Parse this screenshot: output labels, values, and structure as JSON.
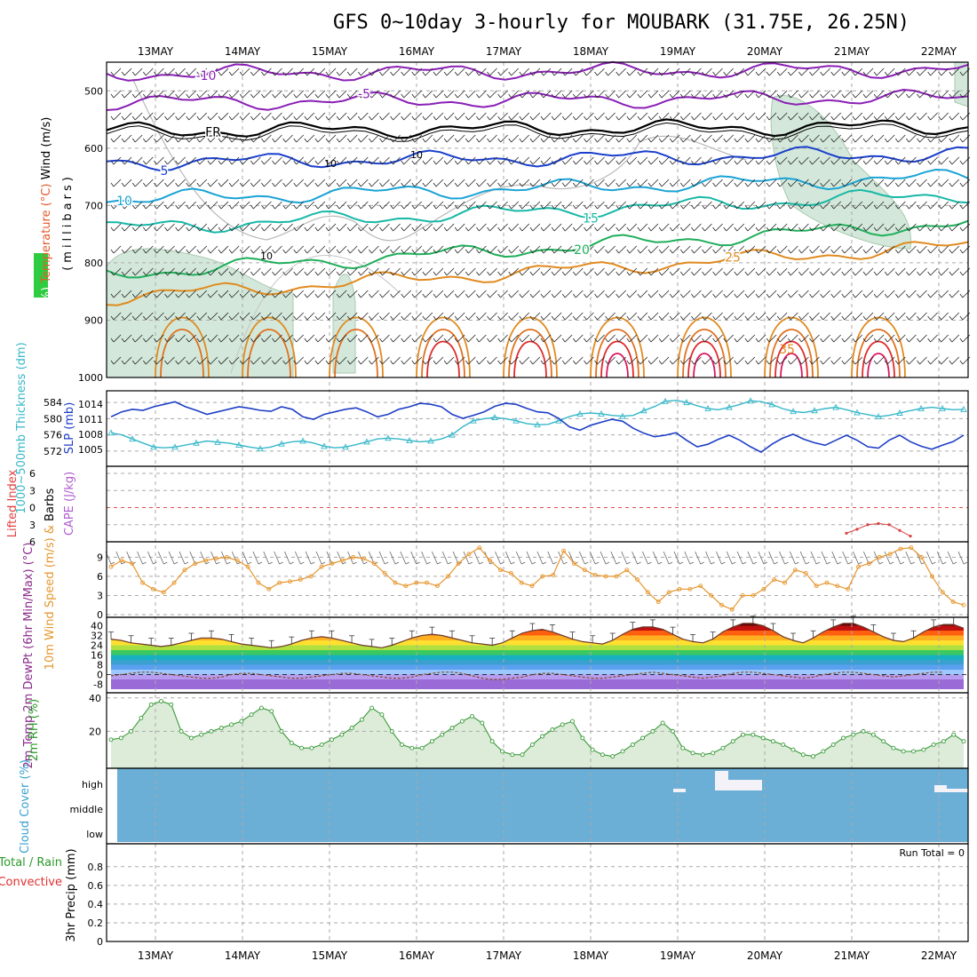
{
  "title": "GFS 0~10day 3-hourly for MOUBARK (31.75E, 26.25N)",
  "dates": [
    "13MAY",
    "14MAY",
    "15MAY",
    "16MAY",
    "17MAY",
    "18MAY",
    "19MAY",
    "20MAY",
    "21MAY",
    "22MAY"
  ],
  "colors": {
    "purple": "#8a1fb5",
    "blue": "#1a3fcc",
    "cyan": "#1aa3d6",
    "teal": "#17b8a6",
    "green": "#1fae5a",
    "orange": "#e08a1f",
    "red": "#e02a2a",
    "magenta": "#d81b60",
    "rh_fill": "#cfe6d6",
    "rh_line": "#3a9a3a",
    "cloud": "#6baed6",
    "thickness": "#36b7c9",
    "slp": "#1f3fc6",
    "wind_speed": "#e6962e"
  },
  "chart_data": [
    {
      "type": "line",
      "panel": "upper-air",
      "ylabel_parts": [
        "RH (%)",
        "Temperature (°C)",
        "Wind (m/s)"
      ],
      "yaxis_label": "(millibars)",
      "y_ticks": [
        500,
        600,
        700,
        800,
        900,
        1000
      ],
      "ylim": [
        450,
        1000
      ],
      "isotherms": [
        {
          "label": "-10",
          "level": 470,
          "color": "purple"
        },
        {
          "label": "-5",
          "level": 520,
          "color": "purple"
        },
        {
          "label": "FR",
          "level": 570,
          "color": "black"
        },
        {
          "label": "5",
          "level": 625,
          "color": "blue"
        },
        {
          "label": "10",
          "level": 690,
          "color": "cyan"
        },
        {
          "label": "15",
          "level": 740,
          "color": "teal"
        },
        {
          "label": "20",
          "level": 820,
          "color": "green"
        },
        {
          "label": "25",
          "level": 860,
          "color": "orange"
        },
        {
          "label": "35",
          "level": 945,
          "color": "orange"
        }
      ],
      "rh_label": "10"
    },
    {
      "type": "line",
      "panel": "thickness-slp",
      "left_label": "1000~500mb Thickness (dm)",
      "right_label": "SLP (mb)",
      "thickness_ticks": [
        572,
        576,
        580,
        584
      ],
      "slp_ticks": [
        1005,
        1008,
        1011,
        1014
      ],
      "thickness": [
        576.5,
        576,
        575,
        574,
        573,
        572.8,
        573,
        573.5,
        574,
        574.5,
        574.2,
        574,
        573.5,
        573,
        572.6,
        573,
        573.8,
        574.3,
        574.5,
        574,
        573.2,
        572.8,
        573,
        573.6,
        574.3,
        575,
        575.2,
        575,
        574.6,
        574.3,
        574.5,
        575,
        576,
        578,
        579.5,
        580,
        580.3,
        580,
        579.5,
        578.8,
        578.5,
        578.6,
        579.5,
        580.5,
        581.2,
        581.4,
        581.2,
        580.8,
        580.6,
        580.8,
        582,
        583,
        584.3,
        584.5,
        584,
        583.2,
        582.5,
        582.2,
        582.8,
        583.5,
        584.4,
        584.2,
        583.5,
        582.5,
        581.8,
        581.5,
        582,
        582.5,
        582.8,
        582.2,
        581.5,
        581,
        580.5,
        580.8,
        581.4,
        582,
        582.5,
        582.8,
        582.5,
        582.2,
        582.3
      ],
      "slp": [
        1011.5,
        1012.5,
        1013,
        1012.8,
        1013.5,
        1014,
        1014.5,
        1013.5,
        1012.8,
        1012,
        1012.5,
        1013,
        1013.5,
        1013.2,
        1012.8,
        1012.6,
        1013.5,
        1013,
        1011.5,
        1011,
        1012,
        1012.5,
        1013,
        1013.3,
        1012.5,
        1011.5,
        1012,
        1013,
        1013.5,
        1014.2,
        1014,
        1013.5,
        1012,
        1011.2,
        1011.8,
        1012.5,
        1013.6,
        1014.2,
        1014,
        1013.2,
        1012.5,
        1012.3,
        1011.2,
        1009.5,
        1008.8,
        1009.8,
        1010.4,
        1011,
        1010.6,
        1009.2,
        1008.2,
        1007.5,
        1007.8,
        1008.3,
        1006.8,
        1005.5,
        1006,
        1007,
        1007.8,
        1006.8,
        1005.5,
        1004.4,
        1006,
        1007.2,
        1008,
        1007,
        1006.3,
        1005.8,
        1006.8,
        1007.8,
        1006.8,
        1005.5,
        1005.2,
        1006.8,
        1007.8,
        1006.5,
        1005.6,
        1005,
        1005.8,
        1006.5,
        1007.8
      ]
    },
    {
      "type": "line",
      "panel": "stability",
      "left_label": "Lifted Index",
      "right_label": "CAPE (J/kg)",
      "li_ticks": [
        -6,
        -3,
        0,
        3,
        6
      ],
      "li_values": [
        [
          69,
          4.5
        ],
        [
          70,
          3.8
        ],
        [
          71,
          3.0
        ],
        [
          72,
          2.8
        ],
        [
          73,
          3.0
        ],
        [
          74,
          4.0
        ],
        [
          75,
          5.0
        ]
      ]
    },
    {
      "type": "line",
      "panel": "10m-wind",
      "ylabel": "10m Wind Speed (m/s) & Barbs",
      "y_ticks": [
        0,
        3,
        6,
        9
      ],
      "values": [
        7.5,
        8.5,
        8,
        5,
        4,
        3.5,
        5,
        7,
        8,
        8.5,
        8.8,
        9,
        8.5,
        7.5,
        5,
        4,
        5,
        5.2,
        5.5,
        6,
        7.5,
        8,
        8.5,
        9,
        8.8,
        8,
        6.5,
        5,
        4.5,
        5,
        5,
        4.5,
        6,
        8,
        9.5,
        10.5,
        8.5,
        7,
        6.5,
        5,
        4.5,
        6,
        6.2,
        10,
        8,
        7,
        6.2,
        6,
        6,
        7,
        5.5,
        3.5,
        2,
        3.5,
        4,
        4,
        4.5,
        3,
        1.5,
        0.8,
        3,
        3,
        4,
        5.5,
        5,
        7,
        6.5,
        4.5,
        5,
        4.5,
        4,
        7.5,
        8,
        9,
        9.5,
        10.3,
        10.5,
        9,
        6,
        3.5,
        2,
        1.5
      ]
    },
    {
      "type": "area",
      "panel": "2m-temp",
      "ylabel": "2m Temp 2m DewPt (6hr Min/Max) (°C)",
      "y_ticks": [
        -8,
        0,
        8,
        16,
        24,
        32,
        40
      ],
      "temp": [
        29,
        28,
        26,
        25,
        24,
        23,
        24,
        26,
        28,
        30,
        30,
        29,
        27,
        25,
        24,
        23,
        22,
        23,
        25,
        28,
        30,
        31,
        30,
        28,
        26,
        24,
        23,
        22,
        24,
        27,
        30,
        32,
        33,
        32,
        30,
        28,
        26,
        25,
        24,
        26,
        30,
        34,
        36,
        37,
        35,
        32,
        29,
        27,
        26,
        25,
        28,
        33,
        37,
        39,
        39,
        37,
        33,
        29,
        27,
        26,
        29,
        35,
        39,
        42,
        42,
        40,
        36,
        31,
        28,
        26,
        30,
        35,
        39,
        42,
        42,
        39,
        35,
        31,
        28,
        27,
        30,
        35,
        39,
        41,
        41,
        38
      ],
      "dewpoint": [
        -1,
        0,
        1,
        2,
        2,
        1,
        0,
        -1,
        -2,
        -3,
        -3,
        -2,
        0,
        1,
        1,
        0,
        -1,
        -2,
        -3,
        -3,
        -2,
        -1,
        0,
        1,
        1,
        0,
        -1,
        -2,
        -3,
        -3,
        -2,
        0,
        1,
        2,
        2,
        1,
        -1,
        -3,
        -4,
        -4,
        -3,
        -2,
        0,
        1,
        1,
        0,
        -1,
        -2,
        -3,
        -3,
        -2,
        -1,
        0,
        1,
        2,
        1,
        0,
        -1,
        -2,
        -3,
        -2,
        -1,
        1,
        2,
        2,
        1,
        0,
        -1,
        -2,
        -3,
        -2,
        0,
        1,
        2,
        2,
        1,
        0,
        -1,
        -2,
        -1,
        0,
        1,
        2,
        2
      ]
    },
    {
      "type": "area",
      "panel": "2m-rh",
      "ylabel": "2m RH (%)",
      "y_ticks": [
        20,
        40
      ],
      "values": [
        15,
        16,
        20,
        28,
        36,
        38,
        36,
        20,
        16,
        18,
        20,
        22,
        24,
        26,
        30,
        34,
        32,
        20,
        13,
        10,
        10,
        12,
        15,
        18,
        22,
        27,
        34,
        30,
        20,
        12,
        10,
        10,
        14,
        18,
        22,
        26,
        29,
        25,
        14,
        8,
        6,
        6,
        12,
        17,
        21,
        24,
        26,
        16,
        9,
        6,
        5,
        8,
        12,
        16,
        20,
        25,
        20,
        10,
        7,
        6,
        7,
        10,
        14,
        18,
        18,
        16,
        14,
        12,
        9,
        6,
        5,
        8,
        12,
        16,
        18,
        20,
        18,
        14,
        10,
        8,
        8,
        9,
        12,
        14,
        18,
        14
      ]
    },
    {
      "type": "bar",
      "panel": "cloud-cover",
      "ylabel": "Cloud Cover (%)",
      "categories": [
        "high",
        "middle",
        "low"
      ]
    },
    {
      "type": "line",
      "panel": "precip",
      "left_labels": [
        "Total / Rain",
        "Convective"
      ],
      "ylabel": "3hr Precip (mm)",
      "y_ticks": [
        0,
        0.2,
        0.4,
        0.6,
        0.8
      ],
      "ylim": [
        0,
        0.95
      ],
      "run_total": "Run Total = 0"
    }
  ]
}
